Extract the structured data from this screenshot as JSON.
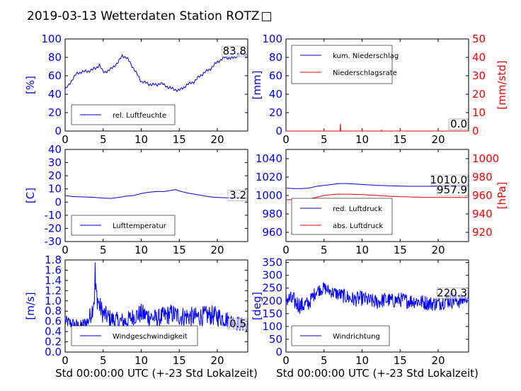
{
  "figure": {
    "title": "2019-03-13 Wetterdaten Station ROTZ",
    "title_glyph": "□",
    "left_color": "#0000ff",
    "right_color": "#ff0000"
  },
  "chart_data": [
    {
      "id": "humidity",
      "type": "line",
      "xlim": [
        0,
        24
      ],
      "ylim": [
        0,
        100
      ],
      "x_ticks": [
        0,
        5,
        10,
        15,
        20
      ],
      "y_ticks": [
        0,
        20,
        40,
        60,
        80,
        100
      ],
      "ylabel": "[%]",
      "xlabel": "",
      "last_value_label": "83.8",
      "legend": {
        "placement": "lower-left",
        "entries": [
          "rel. Luftfeuchte"
        ]
      },
      "series": [
        {
          "name": "rel. Luftfeuchte",
          "color": "#0000ff",
          "axis": "left",
          "x": [
            0,
            0.5,
            1,
            1.5,
            2,
            3,
            4,
            4.5,
            5,
            5.5,
            6,
            7,
            7.5,
            8,
            8.5,
            9,
            10,
            11,
            12,
            12.5,
            13,
            14,
            15,
            16,
            17,
            18,
            19,
            20,
            21,
            22,
            23,
            24
          ],
          "y": [
            45,
            50,
            57,
            62,
            64,
            65,
            68,
            72,
            64,
            65,
            67,
            75,
            82,
            80,
            75,
            68,
            54,
            51,
            50,
            52,
            50,
            46,
            44,
            50,
            54,
            62,
            67,
            75,
            80,
            79,
            83,
            83.8
          ]
        }
      ]
    },
    {
      "id": "precip",
      "type": "line",
      "xlim": [
        0,
        24
      ],
      "ylim": [
        0,
        100
      ],
      "y2lim": [
        0,
        50
      ],
      "x_ticks": [
        0,
        5,
        10,
        15,
        20
      ],
      "y_ticks": [
        0,
        20,
        40,
        60,
        80,
        100
      ],
      "y2_ticks": [
        0,
        10,
        20,
        30,
        40,
        50
      ],
      "ylabel": "[mm]",
      "y2label": "[mm/std]",
      "xlabel": "",
      "last_value_labels": [
        "0.0",
        "0.0"
      ],
      "legend": {
        "placement": "upper-left",
        "entries": [
          "kum. Niederschlag",
          "Niederschlagsrate"
        ]
      },
      "series": [
        {
          "name": "kum. Niederschlag",
          "color": "#0000ff",
          "axis": "left",
          "x": [
            0,
            24
          ],
          "y": [
            0,
            0
          ]
        },
        {
          "name": "Niederschlagsrate",
          "color": "#ff0000",
          "axis": "right",
          "x": [
            0,
            7.1,
            7.15,
            7.2,
            7.25,
            12.5,
            12.55,
            12.6,
            24
          ],
          "y": [
            0,
            0,
            4,
            0,
            0,
            0,
            0.5,
            0,
            0
          ]
        }
      ]
    },
    {
      "id": "temperature",
      "type": "line",
      "xlim": [
        0,
        24
      ],
      "ylim": [
        -30,
        40
      ],
      "x_ticks": [
        0,
        5,
        10,
        15,
        20
      ],
      "y_ticks": [
        -30,
        -20,
        -10,
        0,
        10,
        20,
        30,
        40
      ],
      "ylabel": "[C]",
      "xlabel": "",
      "last_value_label": "3.2",
      "legend": {
        "placement": "lower-left",
        "entries": [
          "Lufttemperatur"
        ]
      },
      "series": [
        {
          "name": "Lufttemperatur",
          "color": "#0000ff",
          "axis": "left",
          "x": [
            0,
            1,
            2,
            3,
            4,
            5,
            6,
            7,
            8,
            9,
            10,
            11,
            12,
            13,
            14,
            14.5,
            15,
            16,
            17,
            18,
            19,
            20,
            21,
            22,
            23,
            24
          ],
          "y": [
            5,
            4.2,
            4,
            3.8,
            3.5,
            3,
            2.8,
            3.5,
            4.5,
            5,
            6.5,
            7.5,
            8,
            8,
            9,
            9.5,
            8.5,
            7,
            6,
            5,
            4,
            3.5,
            3.3,
            3.2,
            3.2,
            3.2
          ]
        }
      ]
    },
    {
      "id": "pressure",
      "type": "line",
      "xlim": [
        0,
        24
      ],
      "ylim": [
        950,
        1050
      ],
      "y2lim": [
        910,
        1010
      ],
      "x_ticks": [
        0,
        5,
        10,
        15,
        20
      ],
      "y_ticks": [
        960,
        980,
        1000,
        1020,
        1040
      ],
      "y2_ticks": [
        920,
        940,
        960,
        980,
        1000
      ],
      "ylabel": "",
      "y2label": "[hPa]",
      "xlabel": "",
      "last_value_labels": [
        "1010.0",
        "957.9"
      ],
      "legend": {
        "placement": "lower-left",
        "entries": [
          "red. Luftdruck",
          "abs. Luftdruck"
        ]
      },
      "series": [
        {
          "name": "red. Luftdruck",
          "color": "#0000ff",
          "axis": "left",
          "x": [
            0,
            1,
            2,
            3,
            4,
            5,
            6,
            7,
            8,
            9,
            10,
            12,
            14,
            16,
            18,
            20,
            22,
            24
          ],
          "y": [
            1008,
            1007.5,
            1007.5,
            1008,
            1010,
            1011,
            1012,
            1013,
            1013,
            1012.5,
            1012,
            1011,
            1010.5,
            1010,
            1010,
            1010,
            1010,
            1010
          ]
        },
        {
          "name": "abs. Luftdruck",
          "color": "#ff0000",
          "axis": "right",
          "x": [
            0,
            1,
            2,
            3,
            4,
            5,
            6,
            7,
            8,
            9,
            10,
            12,
            14,
            16,
            18,
            20,
            22,
            24
          ],
          "y": [
            955.5,
            955.5,
            955.5,
            956,
            958,
            960,
            961,
            961.5,
            961.5,
            961.2,
            961,
            960,
            959,
            958.5,
            958,
            958,
            957.9,
            957.9
          ]
        }
      ]
    },
    {
      "id": "wind_speed",
      "type": "line",
      "xlim": [
        0,
        24
      ],
      "ylim": [
        0,
        1.8
      ],
      "x_ticks": [
        0,
        5,
        10,
        15,
        20
      ],
      "y_ticks": [
        0.0,
        0.2,
        0.4,
        0.6,
        0.8,
        1.0,
        1.2,
        1.4,
        1.6,
        1.8
      ],
      "ylabel": "[m/s]",
      "xlabel": "Std 00:00:00 UTC (+-23 Std Lokalzeit)",
      "last_value_label": "0.5",
      "legend": {
        "placement": "lower-left",
        "entries": [
          "Windgeschwindigkeit"
        ]
      },
      "series": [
        {
          "name": "Windgeschwindigkeit",
          "color": "#0000ff",
          "axis": "left",
          "noisy": true,
          "x": [
            0,
            1,
            2,
            3,
            3.5,
            4,
            4.5,
            5,
            6,
            7,
            8,
            9,
            10,
            11,
            12,
            13,
            14,
            15,
            16,
            17,
            18,
            19,
            20,
            21,
            22,
            23,
            24
          ],
          "y": [
            0.6,
            0.55,
            0.5,
            0.6,
            0.8,
            1.2,
            0.9,
            0.75,
            0.65,
            0.6,
            0.6,
            0.7,
            0.75,
            0.7,
            0.65,
            0.7,
            0.75,
            0.7,
            0.7,
            0.68,
            0.7,
            0.72,
            0.7,
            0.65,
            0.6,
            0.55,
            0.5
          ],
          "noise": [
            0.12,
            0.12,
            0.12,
            0.15,
            0.2,
            0.25,
            0.22,
            0.2,
            0.18,
            0.18,
            0.18,
            0.18,
            0.2,
            0.2,
            0.18,
            0.2,
            0.2,
            0.2,
            0.2,
            0.2,
            0.2,
            0.2,
            0.2,
            0.18,
            0.15,
            0.15,
            0.12
          ]
        }
      ]
    },
    {
      "id": "wind_dir",
      "type": "line",
      "xlim": [
        0,
        24
      ],
      "ylim": [
        0,
        360
      ],
      "x_ticks": [
        0,
        5,
        10,
        15,
        20
      ],
      "y_ticks": [
        0,
        50,
        100,
        150,
        200,
        250,
        300,
        350
      ],
      "ylabel": "[deg]",
      "xlabel": "Std 00:00:00 UTC (+-23 Std Lokalzeit)",
      "last_value_label": "220.3",
      "legend": {
        "placement": "lower-left",
        "entries": [
          "Windrichtung"
        ]
      },
      "series": [
        {
          "name": "Windrichtung",
          "color": "#0000ff",
          "axis": "left",
          "noisy": true,
          "x": [
            0,
            1,
            2,
            3,
            4,
            5,
            6,
            7,
            8,
            9,
            10,
            11,
            12,
            13,
            14,
            15,
            16,
            17,
            18,
            19,
            20,
            21,
            22,
            23,
            24
          ],
          "y": [
            210,
            200,
            180,
            190,
            240,
            250,
            235,
            225,
            215,
            205,
            210,
            200,
            195,
            205,
            200,
            205,
            200,
            200,
            195,
            190,
            190,
            205,
            205,
            200,
            220
          ],
          "noise": [
            35,
            35,
            35,
            30,
            25,
            25,
            25,
            28,
            30,
            30,
            30,
            30,
            30,
            30,
            30,
            30,
            30,
            30,
            30,
            30,
            30,
            35,
            35,
            30,
            25
          ]
        }
      ]
    }
  ]
}
